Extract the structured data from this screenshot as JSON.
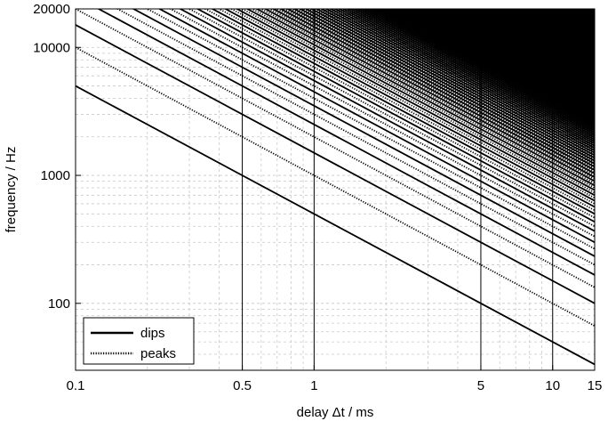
{
  "chart_data": {
    "type": "line",
    "xlabel": "delay Δt / ms",
    "ylabel": "frequency / Hz",
    "x_scale": "log",
    "y_scale": "log",
    "xlim": [
      0.1,
      15
    ],
    "ylim": [
      30,
      20000
    ],
    "x_ticks": [
      {
        "value": 0.1,
        "label": "0.1"
      },
      {
        "value": 0.5,
        "label": "0.5"
      },
      {
        "value": 1,
        "label": "1"
      },
      {
        "value": 5,
        "label": "5"
      },
      {
        "value": 10,
        "label": "10"
      },
      {
        "value": 15,
        "label": "15"
      }
    ],
    "y_ticks": [
      {
        "value": 100,
        "label": "100"
      },
      {
        "value": 1000,
        "label": "1000"
      },
      {
        "value": 10000,
        "label": "10000"
      },
      {
        "value": 20000,
        "label": "20000"
      }
    ],
    "highlight_x": [
      0.5,
      1,
      5,
      10
    ],
    "grid": true,
    "legend_position": "bottom-left",
    "series": [
      {
        "name": "dips",
        "style": "solid",
        "formula": "f = (2k+1) / (2 Δt)",
        "k_start": 0,
        "k_end": 300,
        "color": "#000000"
      },
      {
        "name": "peaks",
        "style": "dotted",
        "formula": "f = k / Δt",
        "k_start": 1,
        "k_end": 300,
        "color": "#000000"
      }
    ]
  }
}
